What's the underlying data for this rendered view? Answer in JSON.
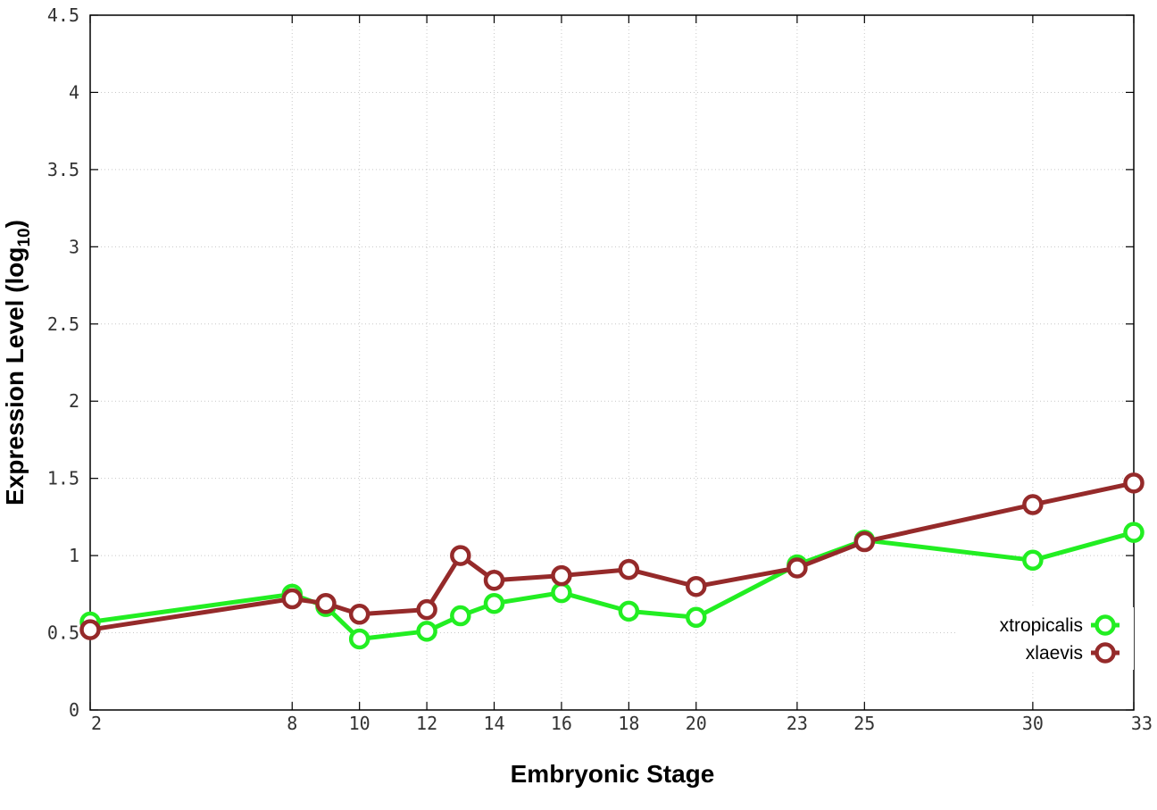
{
  "chart_data": {
    "type": "line",
    "title": "",
    "xlabel": "Embryonic Stage",
    "ylabel_main": "Expression Level (log",
    "ylabel_sub": "10",
    "ylabel_close": ")",
    "xlim": [
      2,
      33
    ],
    "ylim": [
      0,
      4.5
    ],
    "x_ticks": [
      2,
      8,
      10,
      12,
      14,
      16,
      18,
      20,
      23,
      25,
      30,
      33
    ],
    "y_ticks": [
      0,
      0.5,
      1,
      1.5,
      2,
      2.5,
      3,
      3.5,
      4,
      4.5
    ],
    "grid": true,
    "legend_position": "bottom-right",
    "series": [
      {
        "name": "xtropicalis",
        "color": "#22ee22",
        "x": [
          2,
          8,
          9,
          10,
          12,
          13,
          14,
          16,
          18,
          20,
          23,
          25,
          30,
          33
        ],
        "y": [
          0.57,
          0.75,
          0.67,
          0.46,
          0.51,
          0.61,
          0.69,
          0.76,
          0.64,
          0.6,
          0.94,
          1.1,
          0.97,
          1.15
        ]
      },
      {
        "name": "xlaevis",
        "color": "#952a2a",
        "x": [
          2,
          8,
          9,
          10,
          12,
          13,
          14,
          16,
          18,
          20,
          23,
          25,
          30,
          33
        ],
        "y": [
          0.52,
          0.72,
          0.69,
          0.62,
          0.65,
          1.0,
          0.84,
          0.87,
          0.91,
          0.8,
          0.92,
          1.09,
          1.33,
          1.47
        ]
      }
    ]
  }
}
